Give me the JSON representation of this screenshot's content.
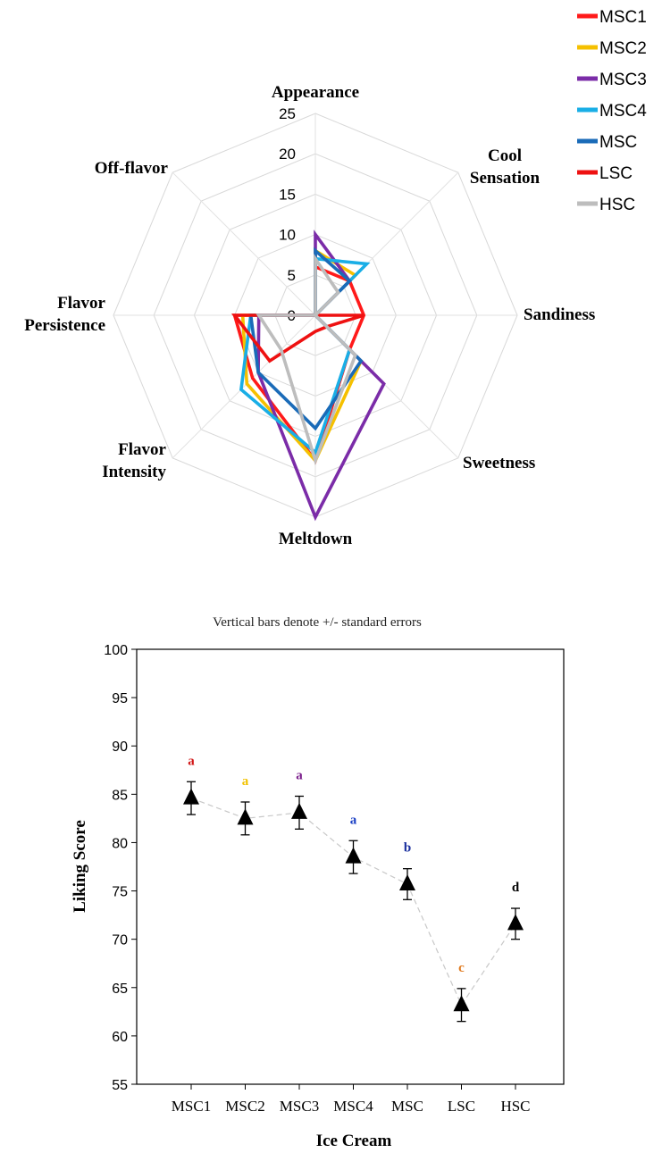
{
  "chart_data": [
    {
      "type": "radar",
      "axes": [
        "Appearance",
        "Cool Sensation",
        "Sandiness",
        "Sweetness",
        "Meltdown",
        "Flavor Intensity",
        "Flavor Persistence",
        "Off-flavor"
      ],
      "axis_label_lines": [
        [
          "Appearance"
        ],
        [
          "Cool",
          "Sensation"
        ],
        [
          "Sandiness"
        ],
        [
          "Sweetness"
        ],
        [
          "Meltdown"
        ],
        [
          "Flavor",
          "Intensity"
        ],
        [
          "Flavor",
          "Persistence"
        ],
        [
          "Off-flavor"
        ]
      ],
      "rlim": [
        0,
        25
      ],
      "rticks": [
        "0",
        "5",
        "10",
        "15",
        "20",
        "25"
      ],
      "series": [
        {
          "name": "MSC1",
          "color": "#ff1a1a",
          "values": [
            6,
            6,
            6,
            6,
            18,
            11,
            10,
            0
          ]
        },
        {
          "name": "MSC2",
          "color": "#f5c000",
          "values": [
            8,
            7,
            0,
            8,
            18,
            12,
            9,
            0
          ]
        },
        {
          "name": "MSC3",
          "color": "#7b2ca8",
          "values": [
            10,
            6,
            0,
            12,
            25,
            10,
            7,
            0
          ]
        },
        {
          "name": "MSC4",
          "color": "#19aee6",
          "values": [
            7,
            9,
            0,
            6,
            17,
            13,
            8,
            0
          ]
        },
        {
          "name": "MSC",
          "color": "#1a6bb8",
          "values": [
            8,
            6,
            0,
            8,
            14,
            10,
            8,
            0
          ]
        },
        {
          "name": "LSC",
          "color": "#ee1111",
          "values": [
            0,
            0,
            6,
            2,
            2,
            8,
            10,
            0
          ]
        },
        {
          "name": "HSC",
          "color": "#bdbdbd",
          "values": [
            7,
            4,
            0,
            7,
            18,
            6,
            7,
            0
          ]
        }
      ]
    },
    {
      "type": "scatter",
      "title": "Vertical bars denote +/- standard errors",
      "xlabel": "Ice Cream",
      "ylabel": "Liking Score",
      "categories": [
        "MSC1",
        "MSC2",
        "MSC3",
        "MSC4",
        "MSC",
        "LSC",
        "HSC"
      ],
      "values": [
        84.6,
        82.5,
        83.1,
        78.5,
        75.7,
        63.2,
        71.6
      ],
      "errors": [
        1.7,
        1.7,
        1.7,
        1.7,
        1.6,
        1.7,
        1.6
      ],
      "letters": [
        "a",
        "a",
        "a",
        "a",
        "b",
        "c",
        "d"
      ],
      "letter_colors": [
        "#d11414",
        "#f2c200",
        "#7b1f8c",
        "#1a3fc4",
        "#1a2f9e",
        "#e07a1f",
        "#000000"
      ],
      "ylim": [
        55,
        100
      ],
      "yticks": [
        "55",
        "60",
        "65",
        "70",
        "75",
        "80",
        "85",
        "90",
        "95",
        "100"
      ]
    }
  ]
}
